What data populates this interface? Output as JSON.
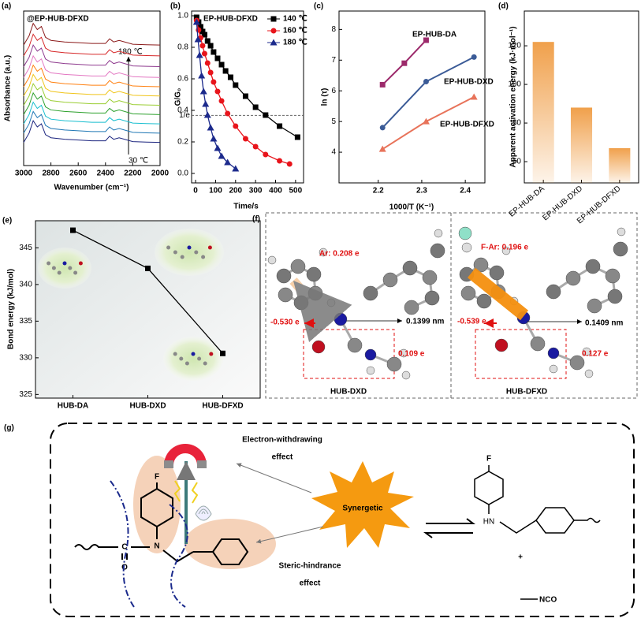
{
  "chart_data": [
    {
      "type": "line",
      "label": "(a)",
      "title": "@EP-HUB-DFXD",
      "x_label": "Wavenumber (cm⁻¹)",
      "y_label": "Absorbance (a.u.)",
      "annotations": [
        "180 ℃",
        "30 ℃"
      ],
      "x": [
        3000,
        2960,
        2930,
        2900,
        2870,
        2840,
        2800,
        2700,
        2600,
        2500,
        2400,
        2370,
        2340,
        2300,
        2200,
        2100,
        2000
      ],
      "xlim": [
        3000,
        2000
      ],
      "xticks": [
        3000,
        2800,
        2600,
        2400,
        2200,
        2000
      ],
      "ylim": [
        0,
        100
      ],
      "series": [
        {
          "color": "#8b1a1a",
          "values": [
            78,
            84,
            92,
            88,
            90,
            83,
            81,
            80,
            79.5,
            79,
            79,
            82,
            80,
            81,
            78.5,
            78.2,
            78
          ]
        },
        {
          "color": "#d62728",
          "values": [
            71,
            77,
            85,
            81,
            83,
            76,
            74,
            73,
            72.5,
            72,
            72,
            75,
            73,
            74,
            71.5,
            71.2,
            71
          ]
        },
        {
          "color": "#8e3a8e",
          "values": [
            64,
            70,
            78,
            74,
            76,
            69,
            67,
            66,
            65.5,
            65,
            65,
            68,
            66,
            67,
            64.5,
            64.2,
            64
          ]
        },
        {
          "color": "#e377c2",
          "values": [
            57,
            63,
            71,
            67,
            69,
            62,
            60,
            59,
            58.5,
            58,
            58,
            61,
            59,
            60,
            57.5,
            57.2,
            57
          ]
        },
        {
          "color": "#ff7f0e",
          "values": [
            51,
            57,
            65,
            61,
            63,
            56,
            54,
            53,
            52.5,
            52,
            52,
            55,
            53,
            54,
            51.5,
            51.2,
            51
          ]
        },
        {
          "color": "#f0c419",
          "values": [
            45,
            51,
            59,
            55,
            57,
            50,
            48,
            47,
            46.5,
            46,
            46,
            49,
            47,
            48,
            45.5,
            45.2,
            45
          ]
        },
        {
          "color": "#9acd32",
          "values": [
            39,
            45,
            53,
            49,
            51,
            44,
            42,
            41,
            40.5,
            40,
            40,
            43,
            41,
            42,
            39.5,
            39.2,
            39
          ]
        },
        {
          "color": "#2ca02c",
          "values": [
            33,
            39,
            47,
            43,
            45,
            38,
            36,
            35,
            34.5,
            34,
            34,
            37,
            35,
            36,
            33.5,
            33.2,
            33
          ]
        },
        {
          "color": "#17becf",
          "values": [
            27,
            33,
            41,
            37,
            39,
            32,
            30,
            29,
            28.5,
            28,
            28,
            31,
            29,
            30,
            27.5,
            27.2,
            27
          ]
        },
        {
          "color": "#1f77b4",
          "values": [
            21,
            27,
            35,
            31,
            33,
            26,
            24,
            23,
            22.5,
            22,
            22,
            25,
            23,
            24,
            21.5,
            21.2,
            21
          ]
        },
        {
          "color": "#1a237e",
          "values": [
            15,
            21,
            29,
            25,
            27,
            20,
            18,
            17,
            16.5,
            16,
            16,
            19,
            17,
            18,
            15.5,
            15.2,
            15
          ]
        }
      ]
    },
    {
      "type": "line",
      "label": "(b)",
      "title": "EP-HUB-DFXD",
      "x_label": "Time/s",
      "y_label": "G/G₀",
      "xlim": [
        -20,
        540
      ],
      "xticks": [
        0,
        100,
        200,
        300,
        400,
        500
      ],
      "ylim": [
        -0.06,
        1.03
      ],
      "yticks": [
        {
          "value": 0,
          "label": "0.0"
        },
        0.2,
        0.4,
        0.6,
        0.8,
        {
          "value": 1,
          "label": "1.0"
        }
      ],
      "reference_line": {
        "value": 0.368,
        "label": "1/e"
      },
      "legend": "top-right",
      "series": [
        {
          "name": "140 ℃",
          "color": "#000000",
          "marker": "square",
          "x": [
            5,
            15,
            25,
            35,
            45,
            60,
            75,
            90,
            110,
            130,
            150,
            175,
            200,
            250,
            300,
            350,
            420,
            510
          ],
          "values": [
            0.99,
            0.96,
            0.93,
            0.9,
            0.88,
            0.84,
            0.81,
            0.77,
            0.73,
            0.69,
            0.65,
            0.61,
            0.56,
            0.49,
            0.42,
            0.37,
            0.3,
            0.23
          ]
        },
        {
          "name": "160 ℃",
          "color": "#e8141b",
          "marker": "circle",
          "x": [
            5,
            15,
            25,
            35,
            45,
            60,
            75,
            90,
            110,
            130,
            160,
            200,
            250,
            300,
            350,
            420,
            470
          ],
          "values": [
            0.97,
            0.91,
            0.86,
            0.81,
            0.76,
            0.7,
            0.64,
            0.58,
            0.52,
            0.46,
            0.38,
            0.3,
            0.22,
            0.17,
            0.12,
            0.08,
            0.06
          ]
        },
        {
          "name": "180 ℃",
          "color": "#1c2a8c",
          "marker": "triangle",
          "x": [
            5,
            12,
            20,
            30,
            40,
            50,
            60,
            75,
            90,
            110,
            130,
            160,
            200
          ],
          "values": [
            0.96,
            0.85,
            0.75,
            0.62,
            0.52,
            0.44,
            0.37,
            0.29,
            0.22,
            0.16,
            0.11,
            0.07,
            0.03
          ]
        }
      ]
    },
    {
      "type": "scatter",
      "label": "(c)",
      "x_label": "1000/T (K⁻¹)",
      "y_label": "ln (τ)",
      "xlim": [
        2.11,
        2.445
      ],
      "xticks": [
        2.2,
        2.3,
        2.4
      ],
      "ylim": [
        3,
        8.6
      ],
      "yticks": [
        4,
        5,
        6,
        7,
        8
      ],
      "series": [
        {
          "name": "EP-HUB-DA",
          "color": "#9c2a6b",
          "marker": "square",
          "x": [
            2.21,
            2.26,
            2.31
          ],
          "values": [
            6.2,
            6.9,
            7.65
          ]
        },
        {
          "name": "EP-HUB-DXD",
          "color": "#3b5b97",
          "marker": "circle",
          "x": [
            2.21,
            2.31,
            2.42
          ],
          "values": [
            4.8,
            6.3,
            7.1
          ]
        },
        {
          "name": "EP-HUB-DFXD",
          "color": "#e8735a",
          "marker": "triangle",
          "x": [
            2.21,
            2.31,
            2.42
          ],
          "values": [
            4.1,
            5.0,
            5.8
          ]
        }
      ]
    },
    {
      "type": "bar",
      "label": "(d)",
      "y_label": "Apparent activation energy (kJ·mol⁻¹)",
      "categories": [
        "EP-HUB-DA",
        "EP-HUB-DXD",
        "EP-HUB-DFXD"
      ],
      "values": [
        122,
        88,
        67
      ],
      "color": "#f0a04b",
      "ylim": [
        49,
        138
      ],
      "yticks": [
        60,
        80,
        100,
        120
      ]
    },
    {
      "type": "line",
      "label": "(e)",
      "y_label": "Bond energy (kJ/mol)",
      "categories": [
        "HUB-DA",
        "HUB-DXD",
        "HUB-DFXD"
      ],
      "values": [
        347.4,
        342.2,
        330.6
      ],
      "color": "#000000",
      "marker": "square",
      "ylim": [
        324.5,
        348.7
      ],
      "yticks": [
        325,
        330,
        335,
        340,
        345
      ]
    }
  ],
  "panel_f": {
    "label": "(f)",
    "left": {
      "title": "HUB-DXD",
      "ar_charge": "Ar: 0.208 e",
      "o_charge": "-0.530 e",
      "bond_length": "0.1399 nm",
      "group_charge": "0.109 e"
    },
    "right": {
      "title": "HUB-DFXD",
      "ar_charge": "F-Ar: 0.196 e",
      "o_charge": "-0.539 e",
      "bond_length": "0.1409 nm",
      "group_charge": "0.127 e"
    }
  },
  "panel_g": {
    "label": "(g)",
    "effect_top": [
      "Electron-withdrawing",
      "effect"
    ],
    "center": "Synergetic",
    "effect_bottom": [
      "Steric-hindrance",
      "effect"
    ],
    "left_atoms": {
      "fluorine": "F",
      "nitrogen": "N",
      "carbon": "C",
      "oxygen": "O"
    },
    "right_atoms": {
      "fluorine": "F",
      "amine": "HN"
    },
    "plus": "+",
    "isocyanate": "NCO"
  }
}
